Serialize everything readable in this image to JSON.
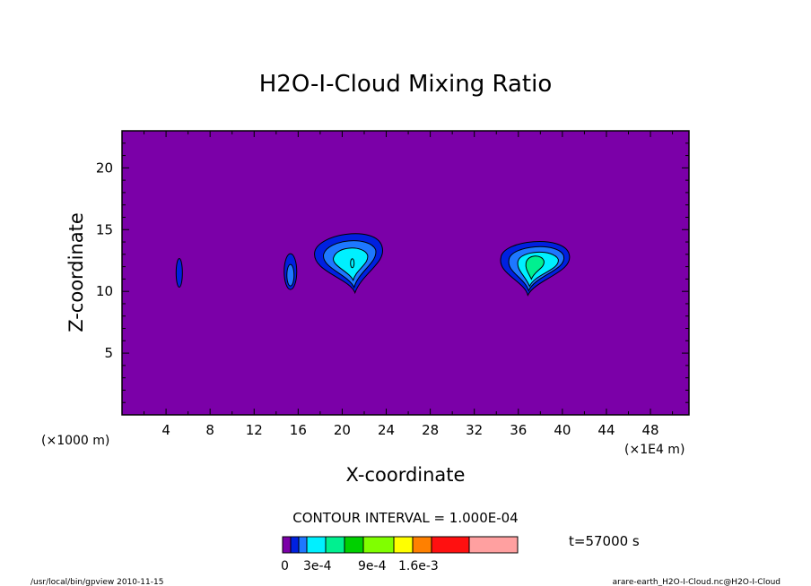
{
  "chart_data": {
    "type": "heatmap",
    "title": "H2O-I-Cloud Mixing Ratio",
    "xlabel": "X-coordinate",
    "ylabel": "Z-coordinate",
    "x_unit_left": "(×1000 m)",
    "x_unit_right": "(×1E4 m)",
    "xlim": [
      0,
      51.5
    ],
    "ylim": [
      0,
      23
    ],
    "x_ticks": [
      4,
      8,
      12,
      16,
      20,
      24,
      28,
      32,
      36,
      40,
      44,
      48
    ],
    "y_ticks": [
      5,
      10,
      15,
      20
    ],
    "background_color": "#7b00a8",
    "contour_interval_text": "CONTOUR INTERVAL = 1.000E-04",
    "time_text": "t=57000 s",
    "colorbar": {
      "labels": [
        "0",
        "3e-4",
        "9e-4",
        "1.6e-3"
      ],
      "colors": [
        "#7b00a8",
        "#0020e0",
        "#1e78ff",
        "#00f0ff",
        "#00f090",
        "#00d000",
        "#80ff00",
        "#ffff00",
        "#ff8000",
        "#ff1010",
        "#ffa0a0"
      ]
    },
    "features": [
      {
        "name": "small-cell-x5",
        "cx": 5.2,
        "cz": 11.5,
        "levels": [
          1
        ]
      },
      {
        "name": "small-cell-x15",
        "cx": 15.3,
        "cz": 11.6,
        "levels": [
          1,
          2
        ]
      },
      {
        "name": "cloud-x21",
        "cx": 21.0,
        "cz": 12.5,
        "levels": [
          1,
          2,
          3,
          3
        ]
      },
      {
        "name": "cloud-x38",
        "cx": 38.0,
        "cz": 12.3,
        "levels": [
          1,
          2,
          3,
          4
        ]
      }
    ]
  },
  "footer": {
    "left": "/usr/local/bin/gpview  2010-11-15",
    "right": "arare-earth_H2O-I-Cloud.nc@H2O-I-Cloud"
  }
}
